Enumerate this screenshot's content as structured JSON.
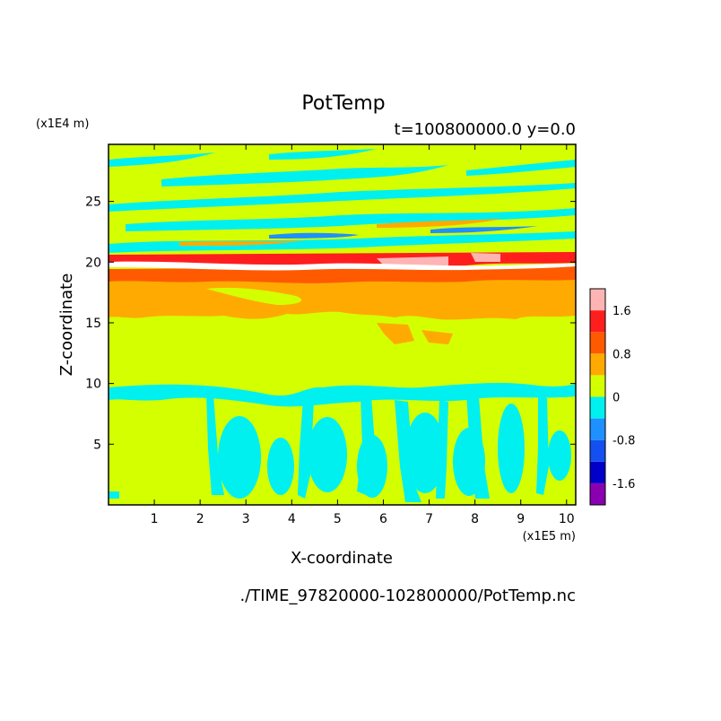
{
  "chart_data": {
    "type": "heatmap",
    "title": "PotTemp",
    "subtitle": "t=100800000.0 y=0.0",
    "xlabel": "X-coordinate",
    "ylabel": "Z-coordinate",
    "x_unit": "(x1E5 m)",
    "y_unit": "(x1E4 m)",
    "xlim": [
      0,
      10.2
    ],
    "ylim": [
      0,
      29.7
    ],
    "x_ticks": [
      1,
      2,
      3,
      4,
      5,
      6,
      7,
      8,
      9,
      10
    ],
    "y_ticks": [
      5,
      10,
      15,
      20,
      25
    ],
    "colorbar": {
      "levels": [
        -2.0,
        -1.6,
        -1.2,
        -0.8,
        -0.4,
        0,
        0.4,
        0.8,
        1.2,
        1.6,
        2.0
      ],
      "colors": [
        "#8a00b0",
        "#0000c8",
        "#1450f0",
        "#1e90ff",
        "#00f0f0",
        "#d4ff00",
        "#ffaa00",
        "#ff5a00",
        "#ff1e1e",
        "#ffb4b4"
      ],
      "tick_labels": [
        "1.6",
        "0.8",
        "0",
        "-0.8",
        "-1.6"
      ],
      "tick_values": [
        1.6,
        0.8,
        0,
        -0.8,
        -1.6
      ]
    },
    "regions": [
      {
        "z_range": [
          0,
          10
        ],
        "value": 0.1,
        "note": "background near zero"
      },
      {
        "z_range": [
          1,
          8
        ],
        "value": -0.3,
        "note": "cells"
      },
      {
        "z_range": [
          8.5,
          10
        ],
        "value": -0.3
      },
      {
        "z_range": [
          15.5,
          19
        ],
        "value": 0.6
      },
      {
        "z_range": [
          19,
          20
        ],
        "value": 1.0
      },
      {
        "z_range": [
          20,
          21
        ],
        "value": 1.4
      },
      {
        "z_range": [
          21,
          29.7
        ],
        "value": 0.1,
        "note": "layered positive/negative bands"
      }
    ]
  },
  "footer_path": "./TIME_97820000-102800000/PotTemp.nc"
}
